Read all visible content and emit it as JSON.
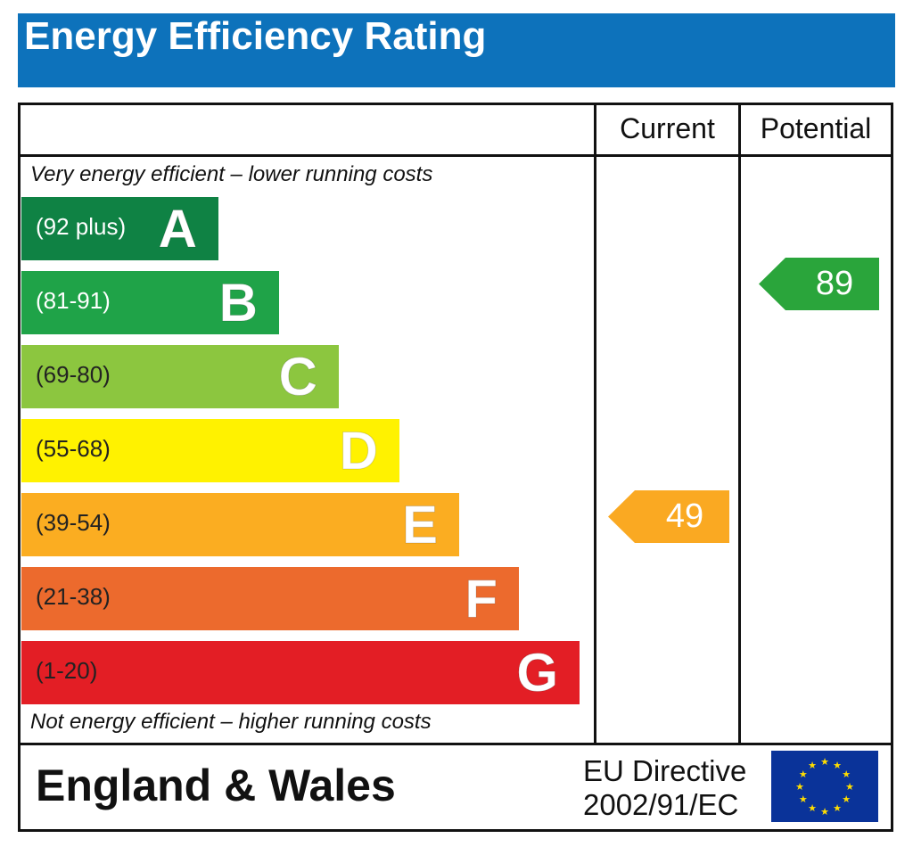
{
  "header": {
    "title": "Energy Efficiency Rating"
  },
  "columns": {
    "current": "Current",
    "potential": "Potential"
  },
  "notes": {
    "top": "Very energy efficient – lower running costs",
    "bottom": "Not energy efficient – higher running costs"
  },
  "footer": {
    "region": "England & Wales",
    "directive_line1": "EU Directive",
    "directive_line2": "2002/91/EC",
    "flag_icon": "eu-flag-icon"
  },
  "chart_data": {
    "type": "bar",
    "title": "Energy Efficiency Rating",
    "categories": [
      "A",
      "B",
      "C",
      "D",
      "E",
      "F",
      "G"
    ],
    "bands": [
      {
        "letter": "A",
        "range": "(92 plus)",
        "color": "#0f8244",
        "range_color": "#ffffff"
      },
      {
        "letter": "B",
        "range": "(81-91)",
        "color": "#1fa348",
        "range_color": "#ffffff"
      },
      {
        "letter": "C",
        "range": "(69-80)",
        "color": "#8cc63f",
        "range_color": "#222222"
      },
      {
        "letter": "D",
        "range": "(55-68)",
        "color": "#fff200",
        "range_color": "#222222"
      },
      {
        "letter": "E",
        "range": "(39-54)",
        "color": "#fbad21",
        "range_color": "#222222"
      },
      {
        "letter": "F",
        "range": "(21-38)",
        "color": "#ec6a2d",
        "range_color": "#222222"
      },
      {
        "letter": "G",
        "range": "(1-20)",
        "color": "#e31e25",
        "range_color": "#222222"
      }
    ],
    "current": {
      "value": 49,
      "band": "E",
      "color": "#faa922"
    },
    "potential": {
      "value": 89,
      "band": "B",
      "color": "#2aa53b"
    }
  }
}
